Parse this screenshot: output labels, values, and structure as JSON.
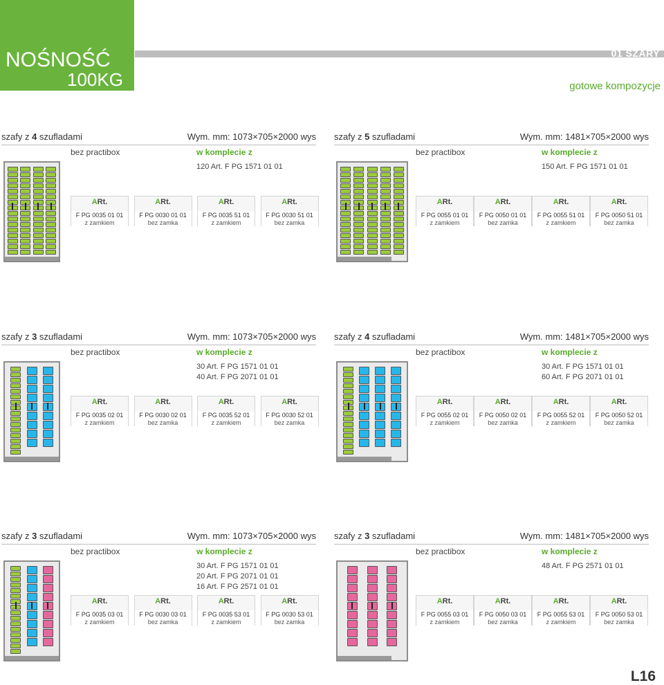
{
  "header": {
    "title_line1": "NOŚNOŚĆ",
    "title_line2": "100KG",
    "bar_label": "01 SZARY",
    "subtitle": "gotowe kompozycje",
    "page_number": "L16"
  },
  "colors": {
    "green": "#6ab43e",
    "accent_text": "#5aaa2c",
    "drawer_green": "#9ccb3b",
    "drawer_blue": "#27b6ea",
    "drawer_pink": "#e6679c"
  },
  "blocks": [
    {
      "title_pre": "szafy z ",
      "count": "4",
      "title_post": " szufladami",
      "dims": "Wym. mm: 1073×705×2000 wys",
      "label_a": "bez practibox",
      "label_b": "w komplecie z",
      "items": [
        "120 Art. F PG 1571 01 01"
      ],
      "art_label_a": "A",
      "art_label_b": "Rt.",
      "table": [
        {
          "code": "F PG 0035 01 01",
          "lock": "z zamkiem"
        },
        {
          "code": "F PG 0030 01 01",
          "lock": "bez zamka"
        },
        {
          "code": "F PG 0035 51 01",
          "lock": "z zamkiem"
        },
        {
          "code": "F PG 0030 51 01",
          "lock": "bez zamka"
        }
      ]
    },
    {
      "title_pre": "szafy z ",
      "count": "5",
      "title_post": " szufladami",
      "dims": "Wym. mm: 1481×705×2000 wys",
      "label_a": "bez practibox",
      "label_b": "w komplecie z",
      "items": [
        "150 Art. F PG 1571 01 01"
      ],
      "art_label_a": "A",
      "art_label_b": "Rt.",
      "table": [
        {
          "code": "F PG 0055 01 01",
          "lock": "z zamkiem"
        },
        {
          "code": "F PG 0050 01 01",
          "lock": "bez zamka"
        },
        {
          "code": "F PG 0055 51 01",
          "lock": "z zamkiem"
        },
        {
          "code": "F PG 0050 51 01",
          "lock": "bez zamka"
        }
      ]
    },
    {
      "title_pre": "szafy z ",
      "count": "3",
      "title_post": " szufladami",
      "dims": "Wym. mm: 1073×705×2000 wys",
      "label_a": "bez practibox",
      "label_b": "w komplecie z",
      "items": [
        "30 Art. F PG 1571 01 01",
        "40 Art. F PG 2071 01 01"
      ],
      "art_label_a": "A",
      "art_label_b": "Rt.",
      "table": [
        {
          "code": "F PG 0035 02 01",
          "lock": "z zamkiem"
        },
        {
          "code": "F PG 0030 02 01",
          "lock": "bez zamka"
        },
        {
          "code": "F PG 0035 52 01",
          "lock": "z zamkiem"
        },
        {
          "code": "F PG 0030 52 01",
          "lock": "bez zamka"
        }
      ]
    },
    {
      "title_pre": "szafy z ",
      "count": "4",
      "title_post": " szufladami",
      "dims": "Wym. mm: 1481×705×2000 wys",
      "label_a": "bez practibox",
      "label_b": "w komplecie z",
      "items": [
        "30 Art. F PG 1571 01 01",
        "60 Art. F PG 2071 01 01"
      ],
      "art_label_a": "A",
      "art_label_b": "Rt.",
      "table": [
        {
          "code": "F PG 0055 02 01",
          "lock": "z zamkiem"
        },
        {
          "code": "F PG 0050 02 01",
          "lock": "bez zamka"
        },
        {
          "code": "F PG 0055 52 01",
          "lock": "z zamkiem"
        },
        {
          "code": "F PG 0050 52 01",
          "lock": "bez zamka"
        }
      ]
    },
    {
      "title_pre": "szafy z ",
      "count": "3",
      "title_post": " szufladami",
      "dims": "Wym. mm: 1073×705×2000 wys",
      "label_a": "bez practibox",
      "label_b": "w komplecie z",
      "items": [
        "30 Art. F PG 1571 01 01",
        "20 Art. F PG 2071 01 01",
        "16 Art. F PG 2571 01 01"
      ],
      "art_label_a": "A",
      "art_label_b": "Rt.",
      "table": [
        {
          "code": "F PG 0035 03 01",
          "lock": "z zamkiem"
        },
        {
          "code": "F PG 0030 03 01",
          "lock": "bez zamka"
        },
        {
          "code": "F PG 0035 53 01",
          "lock": "z zamkiem"
        },
        {
          "code": "F PG 0030 53 01",
          "lock": "bez zamka"
        }
      ]
    },
    {
      "title_pre": "szafy z ",
      "count": "3",
      "title_post": " szufladami",
      "dims": "Wym. mm: 1481×705×2000 wys",
      "label_a": "bez practibox",
      "label_b": "w komplecie z",
      "items": [
        "48 Art. F PG 2571 01 01"
      ],
      "art_label_a": "A",
      "art_label_b": "Rt.",
      "table": [
        {
          "code": "F PG 0055 03 01",
          "lock": "z zamkiem"
        },
        {
          "code": "F PG 0050 03 01",
          "lock": "bez zamka"
        },
        {
          "code": "F PG 0055 53 01",
          "lock": "z zamkiem"
        },
        {
          "code": "F PG 0050 53 01",
          "lock": "bez zamka"
        }
      ]
    }
  ]
}
